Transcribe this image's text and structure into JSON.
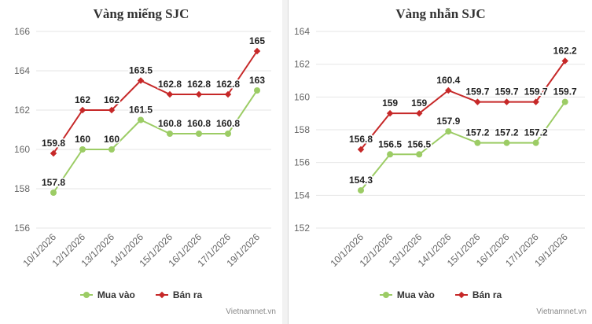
{
  "colors": {
    "buy": "#9ccc65",
    "sell": "#c62828",
    "grid": "#e6e6e6",
    "axis_text": "#666666",
    "label": "#222222"
  },
  "credit": "Vietnamnet.vn",
  "legend": {
    "buy": "Mua vào",
    "sell": "Bán ra"
  },
  "chart_data": [
    {
      "type": "line",
      "title": "Vàng miếng SJC",
      "categories": [
        "10/1/2026",
        "12/1/2026",
        "13/1/2026",
        "14/1/2026",
        "15/1/2026",
        "16/1/2026",
        "17/1/2026",
        "19/1/2026"
      ],
      "series": [
        {
          "name": "Mua vào",
          "values": [
            157.8,
            160,
            160,
            161.5,
            160.8,
            160.8,
            160.8,
            163
          ],
          "labels": [
            "157.8",
            "160",
            "160",
            "161.5",
            "160.8",
            "160.8",
            "160.8",
            "163"
          ]
        },
        {
          "name": "Bán ra",
          "values": [
            159.8,
            162,
            162,
            163.5,
            162.8,
            162.8,
            162.8,
            165
          ],
          "labels": [
            "159.8",
            "162",
            "162",
            "163.5",
            "162.8",
            "162.8",
            "162.8",
            "165"
          ]
        }
      ],
      "ylim": [
        156,
        166
      ],
      "yticks": [
        "156",
        "158",
        "160",
        "162",
        "164",
        "166"
      ],
      "grid": true,
      "legend_position": "bottom"
    },
    {
      "type": "line",
      "title": "Vàng nhẫn SJC",
      "categories": [
        "10/1/2026",
        "12/1/2026",
        "13/1/2026",
        "14/1/2026",
        "15/1/2026",
        "16/1/2026",
        "17/1/2026",
        "19/1/2026"
      ],
      "series": [
        {
          "name": "Mua vào",
          "values": [
            154.3,
            156.5,
            156.5,
            157.9,
            157.2,
            157.2,
            157.2,
            159.7
          ],
          "labels": [
            "154.3",
            "156.5",
            "156.5",
            "157.9",
            "157.2",
            "157.2",
            "157.2",
            "159.7"
          ]
        },
        {
          "name": "Bán ra",
          "values": [
            156.8,
            159,
            159,
            160.4,
            159.7,
            159.7,
            159.7,
            162.2
          ],
          "labels": [
            "156.8",
            "159",
            "159",
            "160.4",
            "159.7",
            "159.7",
            "159.7",
            "162.2"
          ]
        }
      ],
      "ylim": [
        152,
        164
      ],
      "yticks": [
        "152",
        "154",
        "156",
        "158",
        "160",
        "162",
        "164"
      ],
      "grid": true,
      "legend_position": "bottom"
    }
  ]
}
